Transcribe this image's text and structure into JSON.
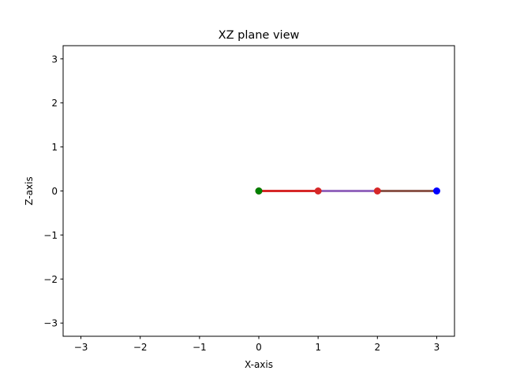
{
  "chart_data": {
    "type": "line",
    "title": "XZ plane view",
    "xlabel": "X-axis",
    "ylabel": "Z-axis",
    "xlim": [
      -3.3,
      3.3
    ],
    "ylim": [
      -3.3,
      3.3
    ],
    "xticks": [
      -3,
      -2,
      -1,
      0,
      1,
      2,
      3
    ],
    "yticks": [
      -3,
      -2,
      -1,
      0,
      1,
      2,
      3
    ],
    "xtick_labels": [
      "−3",
      "−2",
      "−1",
      "0",
      "1",
      "2",
      "3"
    ],
    "ytick_labels": [
      "−3",
      "−2",
      "−1",
      "0",
      "1",
      "2",
      "3"
    ],
    "grid": false,
    "segments": [
      {
        "x": [
          0,
          1
        ],
        "y": [
          0,
          0
        ],
        "color": "#d62728"
      },
      {
        "x": [
          1,
          2
        ],
        "y": [
          0,
          0
        ],
        "color": "#9467bd"
      },
      {
        "x": [
          2,
          3
        ],
        "y": [
          0,
          0
        ],
        "color": "#8c564b"
      }
    ],
    "points": [
      {
        "x": 0,
        "y": 0,
        "color": "#d62728"
      },
      {
        "x": 1,
        "y": 0,
        "color": "#d62728"
      },
      {
        "x": 2,
        "y": 0,
        "color": "#d62728"
      },
      {
        "x": 3,
        "y": 0,
        "color": "#0000ff"
      },
      {
        "x": 0,
        "y": 0,
        "color": "#008000"
      }
    ]
  }
}
